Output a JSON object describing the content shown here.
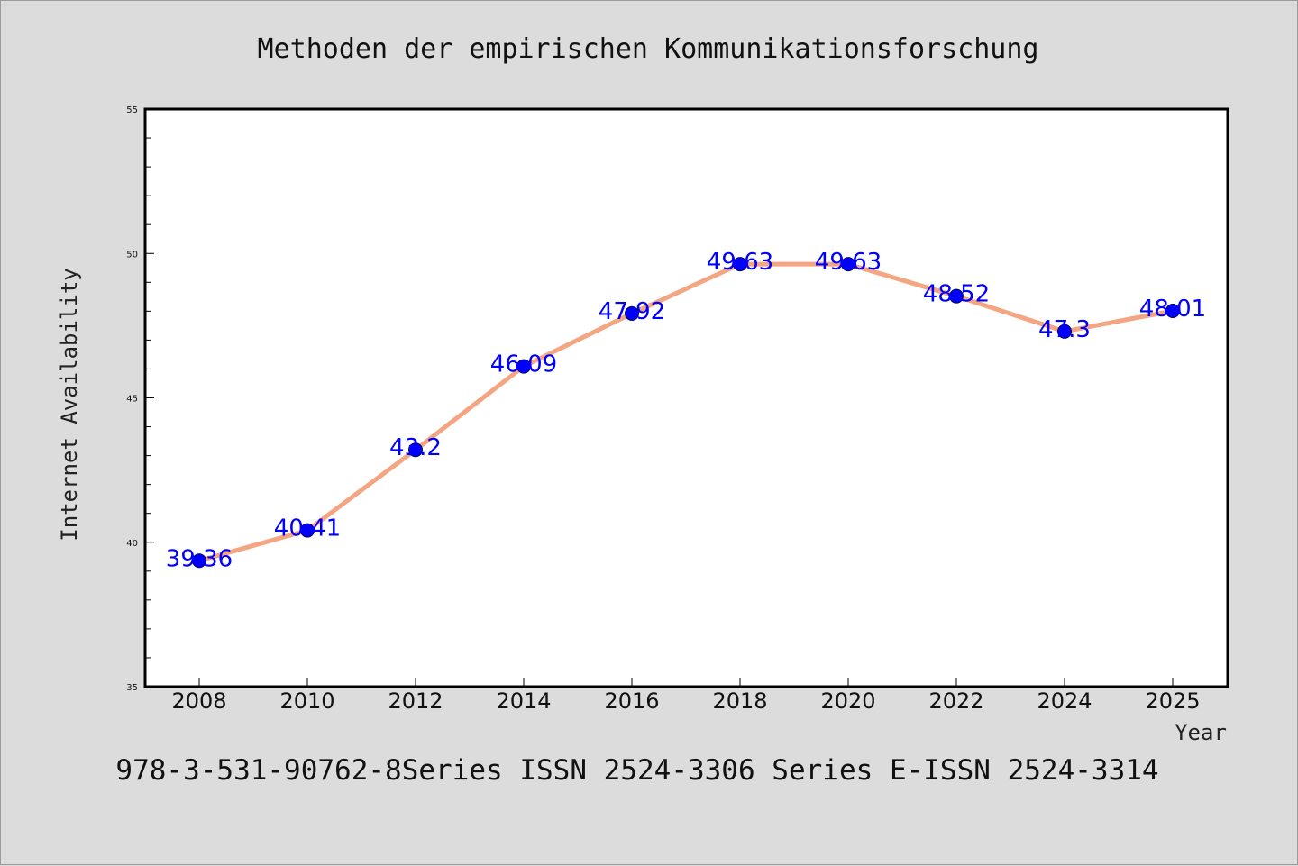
{
  "chart_data": {
    "type": "line",
    "title": "Methoden der empirischen Kommunikationsforschung",
    "xlabel": "Year",
    "ylabel": "Internet Availability",
    "x": [
      "2008",
      "2010",
      "2012",
      "2014",
      "2016",
      "2018",
      "2020",
      "2022",
      "2024",
      "2025"
    ],
    "series": [
      {
        "values": [
          39.36,
          40.41,
          43.2,
          46.09,
          47.92,
          49.63,
          49.63,
          48.52,
          47.3,
          48.01
        ],
        "labels": [
          "39.36",
          "40.41",
          "43.2",
          "46.09",
          "47.92",
          "49.63",
          "49.63",
          "48.52",
          "47.3",
          "48.01"
        ],
        "line_color": "#f4a582",
        "marker_color": "#0000ff",
        "label_color": "#0000ff"
      }
    ],
    "ylim": [
      35,
      55
    ],
    "yticks": [
      "35",
      "40",
      "45",
      "50",
      "55"
    ],
    "grid": false,
    "legend": "none",
    "colors": {
      "background": "#dcdcdc",
      "plot_background": "#ffffff",
      "axis": "#000000"
    }
  },
  "footer": {
    "text": "978-3-531-90762-8Series ISSN 2524-3306 Series E-ISSN 2524-3314"
  }
}
